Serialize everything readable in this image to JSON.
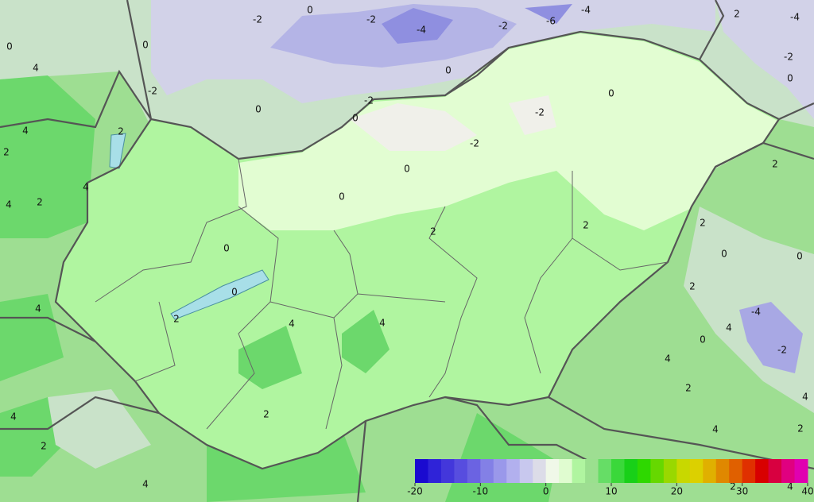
{
  "map": {
    "contour_labels": [
      0,
      0,
      -2,
      0,
      -2,
      -4,
      -2,
      -6,
      -4,
      2,
      -4,
      -2,
      0,
      0,
      0,
      -2,
      -2,
      -2,
      -2,
      0,
      0,
      0,
      0,
      2,
      4,
      4,
      2,
      4,
      4,
      2,
      2,
      2,
      2,
      2,
      0,
      0,
      0,
      2,
      -4,
      4,
      -2,
      0,
      4,
      2,
      4,
      4,
      2,
      0,
      4,
      4,
      2,
      4,
      2,
      4,
      4,
      2,
      2,
      4
    ],
    "colorbar": {
      "lim": [
        -20,
        40
      ],
      "ticks": [
        -20,
        -10,
        0,
        10,
        20,
        30,
        40
      ],
      "colors": [
        "#1a0ad0",
        "#2f23d8",
        "#4337db",
        "#574ddf",
        "#6b63e2",
        "#8380e6",
        "#9a98ea",
        "#b2b0ee",
        "#c8c8ee",
        "#dcdce8",
        "#f0f8e8",
        "#e0fcd0",
        "#b0f5a0",
        "#9be08f",
        "#66dd66",
        "#3ad83a",
        "#18d018",
        "#2ed800",
        "#66d800",
        "#99d800",
        "#c8d800",
        "#dcd000",
        "#e0b000",
        "#e08800",
        "#e06000",
        "#e03000",
        "#d80000",
        "#d80040",
        "#e00080",
        "#e000b0"
      ]
    }
  }
}
